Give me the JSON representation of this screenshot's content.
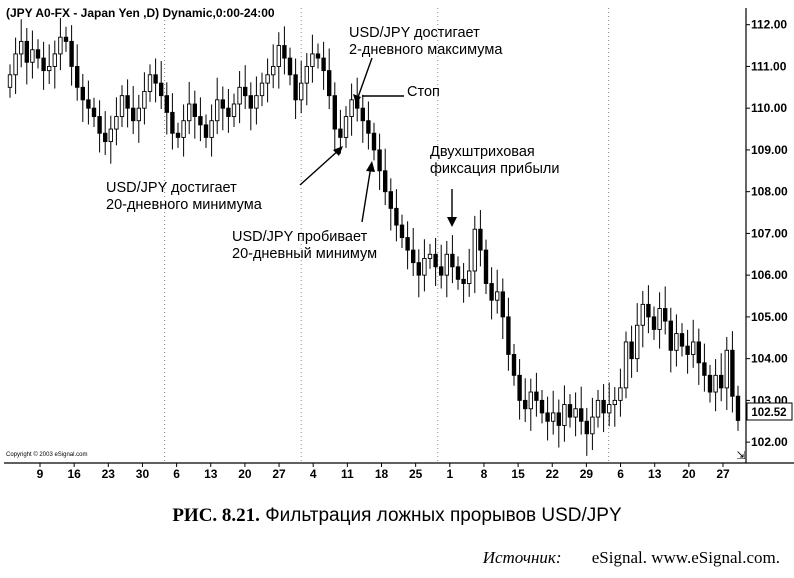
{
  "chart_data": {
    "type": "candlestick",
    "title": "(JPY A0-FX - Japan Yen  ,D) Dynamic,0:00-24:00",
    "ylim": [
      101.5,
      112.4
    ],
    "y_ticks": [
      "112.00",
      "111.00",
      "110.00",
      "109.00",
      "108.00",
      "107.00",
      "106.00",
      "105.00",
      "104.00",
      "103.00",
      "102.00"
    ],
    "x_ticks": [
      "9",
      "16",
      "23",
      "30",
      "6",
      "13",
      "20",
      "27",
      "4",
      "11",
      "18",
      "25",
      "1",
      "8",
      "15",
      "22",
      "29",
      "6",
      "13",
      "20",
      "27"
    ],
    "last_price": "102.52",
    "grid": "vertical dotted",
    "copyright": "Copyright © 2003 eSignal.com",
    "close": [
      110.8,
      111.3,
      111.6,
      111.1,
      111.4,
      111.2,
      110.9,
      111.0,
      111.3,
      111.7,
      111.6,
      111.0,
      110.5,
      110.2,
      110.0,
      109.8,
      109.4,
      109.2,
      109.5,
      109.8,
      110.3,
      110.0,
      109.7,
      110.0,
      110.4,
      110.8,
      110.6,
      110.3,
      109.9,
      109.4,
      109.3,
      109.7,
      110.1,
      109.8,
      109.6,
      109.3,
      109.7,
      110.2,
      110.0,
      109.8,
      110.1,
      110.5,
      110.3,
      110.0,
      110.3,
      110.6,
      110.8,
      111.0,
      111.5,
      111.2,
      110.8,
      110.2,
      110.6,
      111.0,
      111.3,
      111.2,
      110.9,
      110.3,
      109.5,
      109.3,
      109.8,
      110.2,
      110.0,
      109.7,
      109.4,
      109.0,
      108.5,
      108.0,
      107.6,
      107.2,
      106.9,
      106.6,
      106.3,
      106.0,
      106.4,
      106.5,
      106.2,
      106.0,
      106.5,
      106.2,
      105.9,
      105.8,
      106.1,
      107.1,
      106.6,
      105.8,
      105.4,
      105.6,
      105.0,
      104.1,
      103.6,
      103.0,
      102.8,
      103.2,
      103.0,
      102.7,
      102.5,
      102.7,
      102.4,
      102.9,
      102.6,
      102.8,
      102.5,
      102.2,
      102.6,
      103.0,
      102.7,
      102.9,
      103.0,
      103.3,
      104.4,
      104.0,
      104.8,
      105.3,
      105.0,
      104.7,
      105.2,
      104.9,
      104.2,
      104.6,
      104.3,
      104.1,
      104.4,
      103.9,
      103.6,
      103.2,
      103.6,
      103.3,
      104.2,
      103.1,
      102.52
    ]
  },
  "annotations": {
    "a1_line1": "USD/JPY достигает",
    "a1_line2": "2-дневного максимума",
    "a2": "Стоп",
    "a3_line1": "Двухштриховая",
    "a3_line2": "фиксация прибыли",
    "a4_line1": "USD/JPY достигает",
    "a4_line2": "20-дневного минимума",
    "a5_line1": "USD/JPY пробивает",
    "a5_line2": "20-дневный минимум"
  },
  "caption": {
    "number": "РИС. 8.21.",
    "text": "Фильтрация ложных прорывов USD/JPY"
  },
  "source": {
    "label": "Источник:",
    "text": "eSignal. www.eSignal.com."
  },
  "colors": {
    "candle": "#000000",
    "grid": "#888888",
    "background": "#ffffff"
  }
}
